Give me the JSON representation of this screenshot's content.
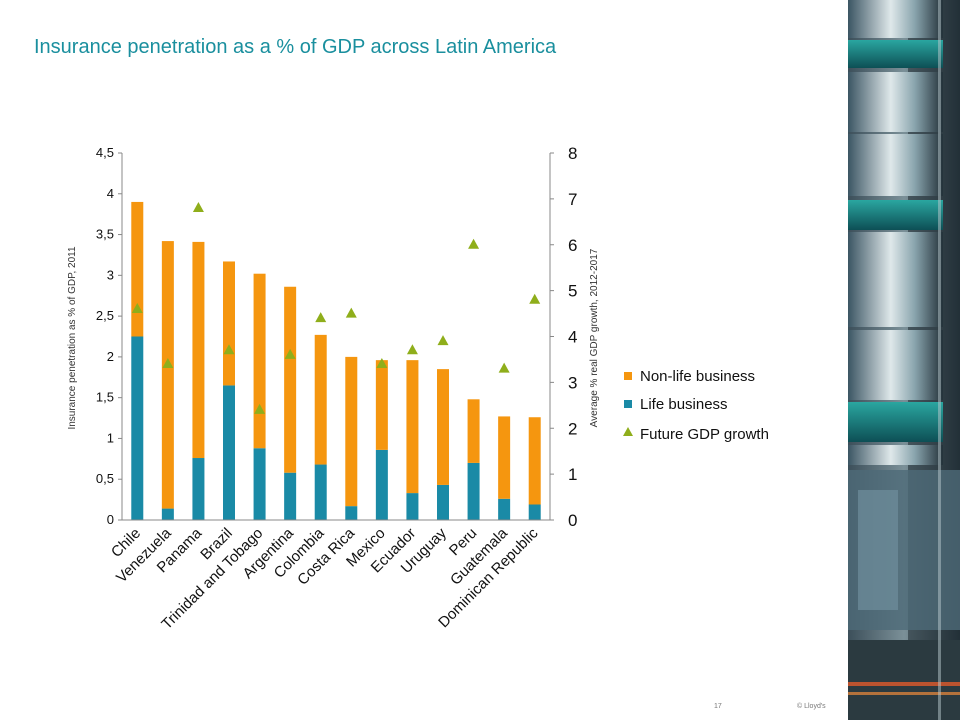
{
  "slide": {
    "title": "Insurance penetration as a % of GDP across Latin America",
    "page_number": "17",
    "copyright": "© Lloyd's"
  },
  "colors": {
    "title": "#1a8f9e",
    "non_life": "#f5960f",
    "life": "#1a8aa6",
    "gdp_growth": "#8fae1b"
  },
  "chart_data": {
    "type": "bar",
    "stacked": true,
    "categories": [
      "Chile",
      "Venezuela",
      "Panama",
      "Brazil",
      "Trinidad and Tobago",
      "Argentina",
      "Colombia",
      "Costa Rica",
      "Mexico",
      "Ecuador",
      "Uruguay",
      "Peru",
      "Guatemala",
      "Dominican Republic"
    ],
    "series": [
      {
        "name": "Life business",
        "axis": "left",
        "values": [
          2.25,
          0.14,
          0.76,
          1.65,
          0.88,
          0.58,
          0.68,
          0.17,
          0.86,
          0.33,
          0.43,
          0.7,
          0.26,
          0.19
        ]
      },
      {
        "name": "Non-life business",
        "axis": "left",
        "values": [
          1.65,
          3.28,
          2.65,
          1.52,
          2.14,
          2.28,
          1.59,
          1.83,
          1.1,
          1.63,
          1.42,
          0.78,
          1.01,
          1.07
        ]
      },
      {
        "name": "Future GDP growth",
        "axis": "right",
        "type": "scatter",
        "marker": "triangle",
        "values": [
          4.6,
          3.4,
          6.8,
          3.7,
          2.4,
          3.6,
          4.4,
          4.5,
          3.4,
          3.7,
          3.9,
          6.0,
          3.3,
          4.8
        ]
      }
    ],
    "ylabel": "Insurance penetration as % of GDP, 2011",
    "y2label": "Average % real GDP growth, 2012-2017",
    "ylim": [
      0,
      4.5
    ],
    "y2lim": [
      0,
      8
    ],
    "yticks": [
      "0",
      "0,5",
      "1",
      "1,5",
      "2",
      "2,5",
      "3",
      "3,5",
      "4",
      "4,5"
    ],
    "y2ticks": [
      "0",
      "1",
      "2",
      "3",
      "4",
      "5",
      "6",
      "7",
      "8"
    ],
    "legend": {
      "placement": "right",
      "entries": [
        "Non-life business",
        "Life business",
        "Future GDP growth"
      ]
    },
    "grid": false
  }
}
